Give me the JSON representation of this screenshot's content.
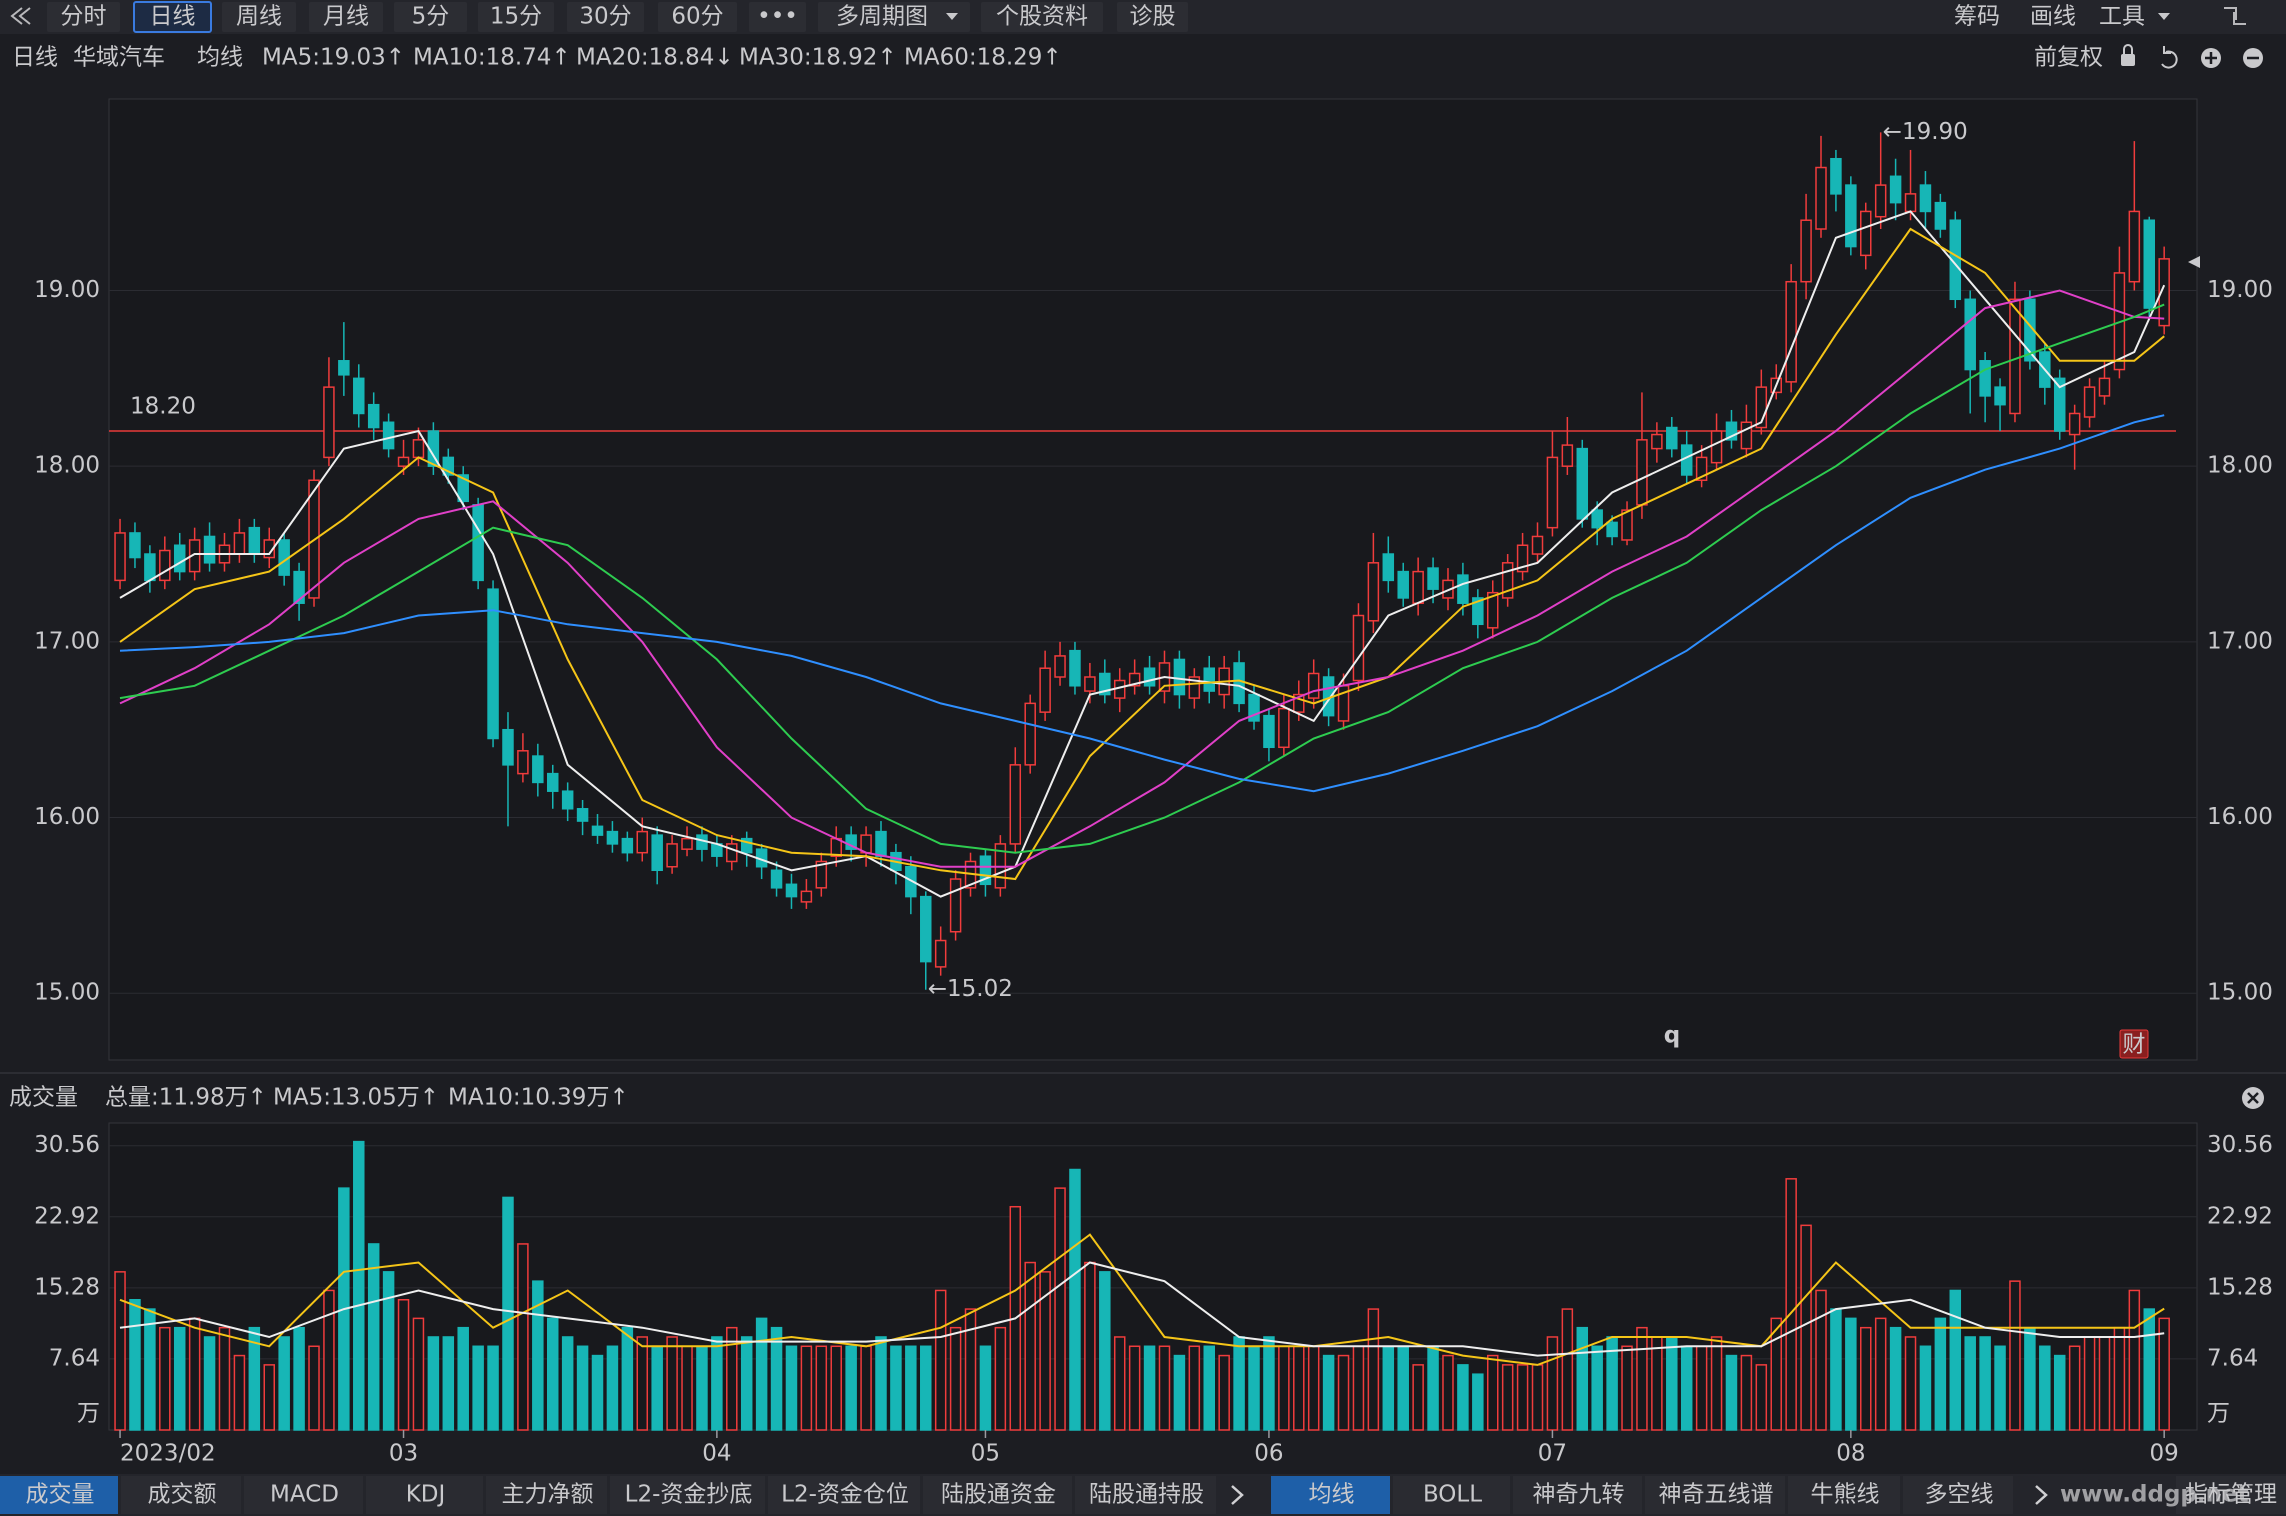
{
  "toolbar": {
    "tabs": [
      "分时",
      "日线",
      "周线",
      "月线",
      "5分",
      "15分",
      "30分",
      "60分",
      "•••",
      "多周期图",
      "个股资料",
      "诊股"
    ],
    "right": [
      "筹码",
      "画线",
      "工具"
    ]
  },
  "chart_data": [
    {
      "type": "candlestick",
      "period": "日线",
      "stock": "华域汽车",
      "ma_label": "均线",
      "adjust": "前复权",
      "up_color": "#f03c3c",
      "down_color": "#17b6b6",
      "open": [
        17.35,
        17.62,
        17.5,
        17.35,
        17.55,
        17.4,
        17.6,
        17.45,
        17.5,
        17.65,
        17.48,
        17.58,
        17.4,
        17.25,
        18.05,
        18.6,
        18.5,
        18.35,
        18.25,
        18.0,
        18.05,
        18.2,
        18.05,
        17.95,
        17.78,
        17.3,
        16.5,
        16.25,
        16.35,
        16.25,
        16.15,
        16.05,
        15.95,
        15.92,
        15.88,
        15.8,
        15.9,
        15.72,
        15.82,
        15.9,
        15.85,
        15.75,
        15.88,
        15.82,
        15.7,
        15.62,
        15.52,
        15.6,
        15.78,
        15.9,
        15.8,
        15.92,
        15.8,
        15.72,
        15.55,
        15.15,
        15.35,
        15.6,
        15.78,
        15.6,
        15.85,
        16.3,
        16.6,
        16.8,
        16.95,
        16.72,
        16.82,
        16.68,
        16.75,
        16.85,
        16.72,
        16.9,
        16.68,
        16.85,
        16.7,
        16.88,
        16.7,
        16.58,
        16.4,
        16.6,
        16.68,
        16.8,
        16.55,
        16.78,
        17.12,
        17.5,
        17.4,
        17.22,
        17.42,
        17.25,
        17.38,
        17.25,
        17.08,
        17.25,
        17.4,
        17.5,
        17.65,
        18.0,
        18.1,
        17.75,
        17.68,
        17.58,
        17.78,
        18.1,
        18.22,
        18.12,
        17.92,
        18.02,
        18.25,
        18.1,
        18.22,
        18.42,
        18.48,
        19.05,
        19.35,
        19.75,
        19.6,
        19.2,
        19.42,
        19.65,
        19.45,
        19.6,
        19.5,
        19.4,
        18.95,
        18.6,
        18.45,
        18.3,
        18.95,
        18.65,
        18.5,
        18.18,
        18.28,
        18.4,
        18.55,
        19.05,
        19.4,
        18.8
      ],
      "high": [
        17.7,
        17.68,
        17.55,
        17.6,
        17.62,
        17.65,
        17.68,
        17.62,
        17.7,
        17.7,
        17.65,
        17.62,
        17.45,
        17.98,
        18.62,
        18.82,
        18.58,
        18.42,
        18.3,
        18.15,
        18.22,
        18.25,
        18.1,
        18.0,
        17.82,
        17.35,
        16.6,
        16.48,
        16.42,
        16.3,
        16.2,
        16.1,
        16.02,
        15.98,
        15.92,
        16.0,
        15.95,
        15.9,
        15.95,
        15.95,
        15.9,
        15.9,
        15.92,
        15.85,
        15.75,
        15.68,
        15.65,
        15.8,
        15.95,
        15.95,
        15.95,
        15.98,
        15.85,
        15.78,
        15.58,
        15.38,
        15.7,
        15.8,
        15.82,
        15.9,
        16.4,
        16.7,
        16.95,
        17.0,
        17.0,
        16.88,
        16.9,
        16.85,
        16.9,
        16.92,
        16.95,
        16.95,
        16.85,
        16.92,
        16.92,
        16.95,
        16.75,
        16.62,
        16.7,
        16.78,
        16.9,
        16.85,
        16.82,
        17.22,
        17.62,
        17.6,
        17.45,
        17.48,
        17.48,
        17.42,
        17.45,
        17.3,
        17.35,
        17.5,
        17.62,
        17.68,
        18.2,
        18.28,
        18.15,
        17.8,
        17.72,
        17.8,
        18.42,
        18.25,
        18.28,
        18.2,
        18.12,
        18.3,
        18.32,
        18.35,
        18.55,
        18.58,
        19.15,
        19.55,
        19.88,
        19.8,
        19.65,
        19.5,
        19.9,
        19.75,
        19.8,
        19.68,
        19.55,
        19.45,
        19.0,
        18.65,
        18.5,
        19.05,
        19.0,
        18.7,
        18.55,
        18.35,
        18.5,
        18.6,
        19.25,
        19.85,
        19.42,
        19.25
      ],
      "low": [
        17.3,
        17.42,
        17.28,
        17.3,
        17.35,
        17.35,
        17.4,
        17.4,
        17.45,
        17.45,
        17.42,
        17.32,
        17.12,
        17.2,
        18.0,
        18.4,
        18.22,
        18.15,
        18.05,
        17.95,
        18.0,
        17.95,
        17.9,
        17.75,
        17.3,
        16.4,
        15.95,
        16.2,
        16.12,
        16.05,
        15.98,
        15.9,
        15.85,
        15.8,
        15.75,
        15.75,
        15.62,
        15.68,
        15.78,
        15.75,
        15.72,
        15.7,
        15.72,
        15.65,
        15.55,
        15.48,
        15.48,
        15.55,
        15.72,
        15.75,
        15.72,
        15.72,
        15.62,
        15.45,
        15.02,
        15.1,
        15.3,
        15.55,
        15.55,
        15.55,
        15.8,
        16.25,
        16.55,
        16.75,
        16.7,
        16.65,
        16.65,
        16.6,
        16.7,
        16.7,
        16.65,
        16.62,
        16.62,
        16.65,
        16.62,
        16.6,
        16.5,
        16.32,
        16.35,
        16.55,
        16.62,
        16.52,
        16.5,
        16.72,
        17.05,
        17.28,
        17.2,
        17.15,
        17.22,
        17.18,
        17.15,
        17.02,
        17.02,
        17.2,
        17.35,
        17.45,
        17.6,
        17.95,
        17.65,
        17.55,
        17.55,
        17.55,
        17.7,
        18.02,
        18.05,
        17.9,
        17.88,
        17.98,
        18.1,
        18.05,
        18.18,
        18.38,
        18.42,
        18.95,
        19.3,
        19.45,
        19.2,
        19.12,
        19.35,
        19.4,
        19.4,
        19.35,
        19.3,
        18.9,
        18.3,
        18.25,
        18.2,
        18.25,
        18.55,
        18.35,
        18.15,
        17.98,
        18.22,
        18.35,
        18.5,
        19.0,
        18.85,
        18.75
      ],
      "close": [
        17.62,
        17.48,
        17.35,
        17.52,
        17.4,
        17.58,
        17.45,
        17.55,
        17.62,
        17.5,
        17.58,
        17.38,
        17.22,
        17.92,
        18.45,
        18.52,
        18.3,
        18.22,
        18.1,
        18.05,
        18.15,
        18.0,
        17.95,
        17.8,
        17.35,
        16.45,
        16.3,
        16.38,
        16.2,
        16.15,
        16.05,
        15.98,
        15.9,
        15.85,
        15.8,
        15.92,
        15.7,
        15.85,
        15.88,
        15.82,
        15.78,
        15.85,
        15.8,
        15.72,
        15.6,
        15.55,
        15.58,
        15.75,
        15.88,
        15.82,
        15.9,
        15.78,
        15.7,
        15.55,
        15.18,
        15.3,
        15.65,
        15.75,
        15.62,
        15.85,
        16.3,
        16.65,
        16.85,
        16.92,
        16.75,
        16.8,
        16.7,
        16.78,
        16.82,
        16.75,
        16.88,
        16.7,
        16.8,
        16.72,
        16.85,
        16.65,
        16.55,
        16.4,
        16.62,
        16.7,
        16.82,
        16.58,
        16.75,
        17.15,
        17.45,
        17.35,
        17.25,
        17.4,
        17.3,
        17.35,
        17.22,
        17.1,
        17.28,
        17.45,
        17.55,
        17.6,
        18.05,
        18.12,
        17.7,
        17.65,
        17.6,
        17.75,
        18.15,
        18.18,
        18.1,
        17.95,
        18.05,
        18.2,
        18.15,
        18.25,
        18.45,
        18.5,
        19.05,
        19.4,
        19.7,
        19.55,
        19.25,
        19.45,
        19.6,
        19.5,
        19.55,
        19.45,
        19.35,
        18.95,
        18.55,
        18.4,
        18.35,
        18.95,
        18.6,
        18.45,
        18.2,
        18.3,
        18.45,
        18.5,
        19.1,
        19.45,
        18.9,
        19.18
      ],
      "line_x": [
        0,
        5,
        10,
        15,
        20,
        25,
        30,
        35,
        40,
        45,
        50,
        55,
        60,
        65,
        70,
        75,
        80,
        85,
        90,
        95,
        100,
        105,
        110,
        115,
        120,
        125,
        130,
        135,
        137
      ],
      "series": [
        {
          "name": "MA5:19.03↑",
          "color": "#eeeeee",
          "values": [
            17.25,
            17.5,
            17.5,
            18.1,
            18.2,
            17.5,
            16.3,
            15.95,
            15.85,
            15.7,
            15.78,
            15.55,
            15.72,
            16.7,
            16.8,
            16.75,
            16.55,
            17.15,
            17.33,
            17.45,
            17.85,
            18.05,
            18.25,
            19.3,
            19.45,
            18.95,
            18.45,
            18.65,
            19.03
          ]
        },
        {
          "name": "MA10:18.74↑",
          "color": "#f5c518",
          "values": [
            17.0,
            17.3,
            17.4,
            17.7,
            18.05,
            17.85,
            16.9,
            16.1,
            15.9,
            15.8,
            15.78,
            15.7,
            15.65,
            16.35,
            16.75,
            16.78,
            16.65,
            16.8,
            17.2,
            17.35,
            17.7,
            17.9,
            18.1,
            18.75,
            19.35,
            19.1,
            18.6,
            18.6,
            18.74
          ]
        },
        {
          "name": "MA20:18.84↓",
          "color": "#e040c8",
          "values": [
            16.65,
            16.85,
            17.1,
            17.45,
            17.7,
            17.8,
            17.45,
            17.0,
            16.4,
            16.0,
            15.8,
            15.72,
            15.72,
            15.95,
            16.2,
            16.55,
            16.72,
            16.8,
            16.95,
            17.15,
            17.4,
            17.6,
            17.9,
            18.2,
            18.55,
            18.9,
            19.0,
            18.85,
            18.84
          ]
        },
        {
          "name": "MA30:18.92↑",
          "color": "#2ecc50",
          "values": [
            16.68,
            16.75,
            16.95,
            17.15,
            17.4,
            17.65,
            17.55,
            17.25,
            16.9,
            16.45,
            16.05,
            15.85,
            15.8,
            15.85,
            16.0,
            16.2,
            16.45,
            16.6,
            16.85,
            17.0,
            17.25,
            17.45,
            17.75,
            18.0,
            18.3,
            18.55,
            18.7,
            18.85,
            18.92
          ]
        },
        {
          "name": "MA60:18.29↑",
          "color": "#2f8fff",
          "values": [
            16.95,
            16.97,
            17.0,
            17.05,
            17.15,
            17.18,
            17.1,
            17.05,
            17.0,
            16.92,
            16.8,
            16.65,
            16.55,
            16.45,
            16.33,
            16.22,
            16.15,
            16.25,
            16.38,
            16.52,
            16.72,
            16.95,
            17.25,
            17.55,
            17.82,
            17.98,
            18.1,
            18.25,
            18.29
          ]
        }
      ],
      "xlim": [
        -0.74,
        139.2
      ],
      "ylim": [
        14.62,
        20.09
      ],
      "yticks": [
        {
          "value": 15,
          "label": "15.00"
        },
        {
          "value": 16,
          "label": "16.00"
        },
        {
          "value": 17,
          "label": "17.00"
        },
        {
          "value": 18,
          "label": "18.00"
        },
        {
          "value": 19,
          "label": "19.00"
        }
      ],
      "hline": {
        "value": 18.2,
        "label": "18.20",
        "color": "#e83a3a"
      },
      "annotations": [
        {
          "text": "←19.90",
          "x": 118,
          "value": 19.9
        },
        {
          "text": "←15.02",
          "x": 54,
          "value": 15.02
        }
      ],
      "markers": [
        "q",
        "财"
      ]
    },
    {
      "type": "bar",
      "title": "成交量",
      "total_label": "总量:11.98万↑",
      "values": [
        17,
        14,
        13,
        11,
        11,
        12,
        10,
        11,
        8,
        11,
        7,
        10,
        11,
        9,
        15,
        26,
        31,
        20,
        17,
        14,
        12,
        10,
        10,
        11,
        9,
        9,
        25,
        20,
        16,
        12,
        10,
        9,
        8,
        9,
        11,
        10,
        9,
        10,
        9,
        9,
        10,
        11,
        10,
        12,
        11,
        9,
        9,
        9,
        9,
        9,
        9,
        10,
        9,
        9,
        9,
        15,
        11,
        13,
        9,
        11,
        24,
        18,
        17,
        26,
        28,
        18,
        17,
        10,
        9,
        9,
        9,
        8,
        9,
        9,
        8,
        10,
        9,
        10,
        9,
        9,
        9,
        8,
        8,
        9,
        13,
        9,
        9,
        7,
        9,
        8,
        7,
        6,
        8,
        7,
        7,
        7,
        10,
        13,
        11,
        9,
        10,
        9,
        11,
        10,
        10,
        9,
        9,
        10,
        8,
        8,
        7,
        12,
        27,
        22,
        15,
        13,
        12,
        11,
        12,
        11,
        10,
        9,
        12,
        15,
        10,
        10,
        9,
        16,
        11,
        9,
        8,
        9,
        10,
        10,
        11,
        15,
        13,
        12
      ],
      "line_x": [
        0,
        5,
        10,
        15,
        20,
        25,
        30,
        35,
        40,
        45,
        50,
        55,
        60,
        65,
        70,
        75,
        80,
        85,
        90,
        95,
        100,
        105,
        110,
        115,
        120,
        125,
        130,
        135,
        137
      ],
      "series": [
        {
          "name": "MA5:13.05万↑",
          "color": "#f5c518",
          "values": [
            14,
            11,
            9,
            17,
            18,
            11,
            15,
            9,
            9,
            10,
            9,
            11,
            15,
            21,
            10,
            9,
            9,
            10,
            8,
            7,
            10,
            10,
            9,
            18,
            11,
            11,
            11,
            11,
            13.05
          ]
        },
        {
          "name": "MA10:10.39万↑",
          "color": "#eeeeee",
          "values": [
            11,
            12,
            10,
            13,
            15,
            13,
            12,
            11,
            9.5,
            9.5,
            9.5,
            10,
            12,
            18,
            16,
            10,
            9,
            9,
            9,
            8,
            8.5,
            9,
            9,
            13,
            14,
            11,
            10,
            10,
            10.39
          ]
        }
      ],
      "xlim": [
        -0.74,
        139.2
      ],
      "ylim": [
        0,
        33.0
      ],
      "yticks": [
        7.64,
        15.28,
        22.92,
        30.56
      ],
      "unit": "万",
      "xticks": [
        {
          "value": 0,
          "label": "2023/02"
        },
        {
          "value": 19,
          "label": "03"
        },
        {
          "value": 40,
          "label": "04"
        },
        {
          "value": 58,
          "label": "05"
        },
        {
          "value": 77,
          "label": "06"
        },
        {
          "value": 96,
          "label": "07"
        },
        {
          "value": 116,
          "label": "08"
        },
        {
          "value": 137,
          "label": "09"
        }
      ]
    }
  ],
  "bottom_tabs": {
    "left": [
      "成交量",
      "成交额",
      "MACD",
      "KDJ",
      "主力净额",
      "L2-资金抄底",
      "L2-资金仓位",
      "陆股通资金",
      "陆股通持股"
    ],
    "right": [
      "均线",
      "BOLL",
      "神奇九转",
      "神奇五线谱",
      "牛熊线",
      "多空线"
    ],
    "manage": "指标管理"
  },
  "watermark": "www.ddgp.net"
}
